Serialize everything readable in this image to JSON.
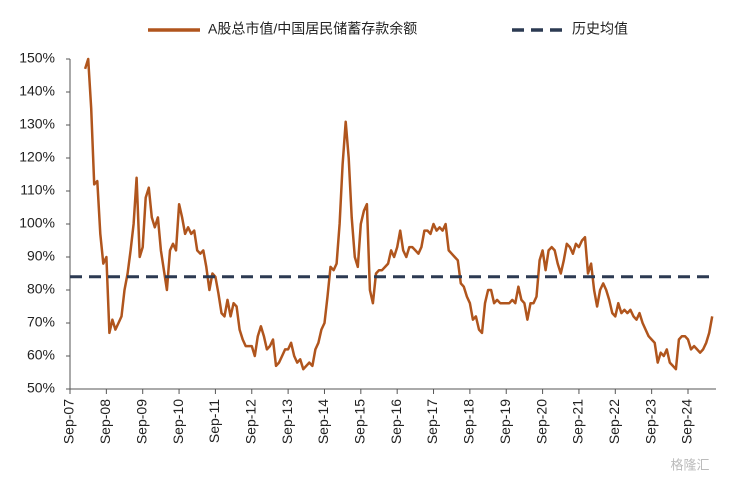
{
  "chart_data": {
    "type": "line",
    "categories": [
      "Sep-07",
      null,
      null,
      null,
      null,
      null,
      null,
      null,
      null,
      null,
      null,
      null,
      "Sep-08",
      null,
      null,
      null,
      null,
      null,
      null,
      null,
      null,
      null,
      null,
      null,
      "Sep-09",
      null,
      null,
      null,
      null,
      null,
      null,
      null,
      null,
      null,
      null,
      null,
      "Sep-10",
      null,
      null,
      null,
      null,
      null,
      null,
      null,
      null,
      null,
      null,
      null,
      "Sep-11",
      null,
      null,
      null,
      null,
      null,
      null,
      null,
      null,
      null,
      null,
      null,
      "Sep-12",
      null,
      null,
      null,
      null,
      null,
      null,
      null,
      null,
      null,
      null,
      null,
      "Sep-13",
      null,
      null,
      null,
      null,
      null,
      null,
      null,
      null,
      null,
      null,
      null,
      "Sep-14",
      null,
      null,
      null,
      null,
      null,
      null,
      null,
      null,
      null,
      null,
      null,
      "Sep-15",
      null,
      null,
      null,
      null,
      null,
      null,
      null,
      null,
      null,
      null,
      null,
      "Sep-16",
      null,
      null,
      null,
      null,
      null,
      null,
      null,
      null,
      null,
      null,
      null,
      "Sep-17",
      null,
      null,
      null,
      null,
      null,
      null,
      null,
      null,
      null,
      null,
      null,
      "Sep-18",
      null,
      null,
      null,
      null,
      null,
      null,
      null,
      null,
      null,
      null,
      null,
      "Sep-19",
      null,
      null,
      null,
      null,
      null,
      null,
      null,
      null,
      null,
      null,
      null,
      "Sep-20",
      null,
      null,
      null,
      null,
      null,
      null,
      null,
      null,
      null,
      null,
      null,
      "Sep-21",
      null,
      null,
      null,
      null,
      null,
      null,
      null,
      null,
      null,
      null,
      null,
      "Sep-22",
      null,
      null,
      null,
      null,
      null,
      null,
      null,
      null,
      null,
      null,
      null,
      "Sep-23",
      null,
      null,
      null,
      null,
      null,
      null,
      null,
      null,
      null,
      null,
      null,
      "Sep-24",
      null,
      null,
      null,
      null,
      null,
      null,
      null,
      null
    ],
    "series": [
      {
        "name": "A股总市值/中国居民储蓄存款余额",
        "color": "#b0551d",
        "values": [
          null,
          null,
          null,
          null,
          null,
          147,
          150,
          135,
          112,
          113,
          97,
          88,
          90,
          67,
          71,
          68,
          70,
          72,
          80,
          85,
          92,
          100,
          114,
          90,
          93,
          108,
          111,
          102,
          99,
          102,
          92,
          86,
          80,
          92,
          94,
          92,
          106,
          102,
          97,
          99,
          97,
          98,
          92,
          91,
          92,
          87,
          80,
          85,
          84,
          79,
          73,
          72,
          77,
          72,
          76,
          75,
          68,
          65,
          63,
          63,
          63,
          60,
          66,
          69,
          66,
          62,
          63,
          65,
          57,
          58,
          60,
          62,
          62,
          64,
          60,
          58,
          59,
          56,
          57,
          58,
          57,
          62,
          64,
          68,
          70,
          78,
          87,
          86,
          88,
          100,
          118,
          131,
          120,
          102,
          90,
          87,
          100,
          104,
          106,
          80,
          76,
          85,
          86,
          86,
          87,
          88,
          92,
          90,
          93,
          98,
          92,
          90,
          93,
          93,
          92,
          91,
          93,
          98,
          98,
          97,
          100,
          98,
          99,
          98,
          100,
          92,
          91,
          90,
          89,
          82,
          81,
          78,
          76,
          71,
          72,
          68,
          67,
          76,
          80,
          80,
          76,
          77,
          76,
          76,
          76,
          76,
          77,
          76,
          81,
          77,
          76,
          71,
          76,
          76,
          78,
          89,
          92,
          86,
          92,
          93,
          92,
          88,
          85,
          89,
          94,
          93,
          91,
          94,
          93,
          95,
          96,
          85,
          88,
          80,
          75,
          80,
          82,
          80,
          77,
          73,
          72,
          76,
          73,
          74,
          73,
          74,
          72,
          71,
          73,
          70,
          68,
          66,
          65,
          64,
          58,
          61,
          60,
          62,
          58,
          57,
          56,
          65,
          66,
          66,
          65,
          62,
          63,
          62,
          61,
          62,
          64,
          67,
          72
        ]
      },
      {
        "name": "历史均值",
        "color": "#2c3a52",
        "dashed": true,
        "value": 84
      }
    ],
    "ylim": [
      50,
      150
    ],
    "yticks": [
      {
        "value": 50,
        "label": "50%"
      },
      {
        "value": 60,
        "label": "60%"
      },
      {
        "value": 70,
        "label": "70%"
      },
      {
        "value": 80,
        "label": "80%"
      },
      {
        "value": 90,
        "label": "90%"
      },
      {
        "value": 100,
        "label": "100%"
      },
      {
        "value": 110,
        "label": "110%"
      },
      {
        "value": 120,
        "label": "120%"
      },
      {
        "value": 130,
        "label": "130%"
      },
      {
        "value": 140,
        "label": "140%"
      },
      {
        "value": 150,
        "label": "150%"
      }
    ],
    "watermark": "格隆汇"
  }
}
